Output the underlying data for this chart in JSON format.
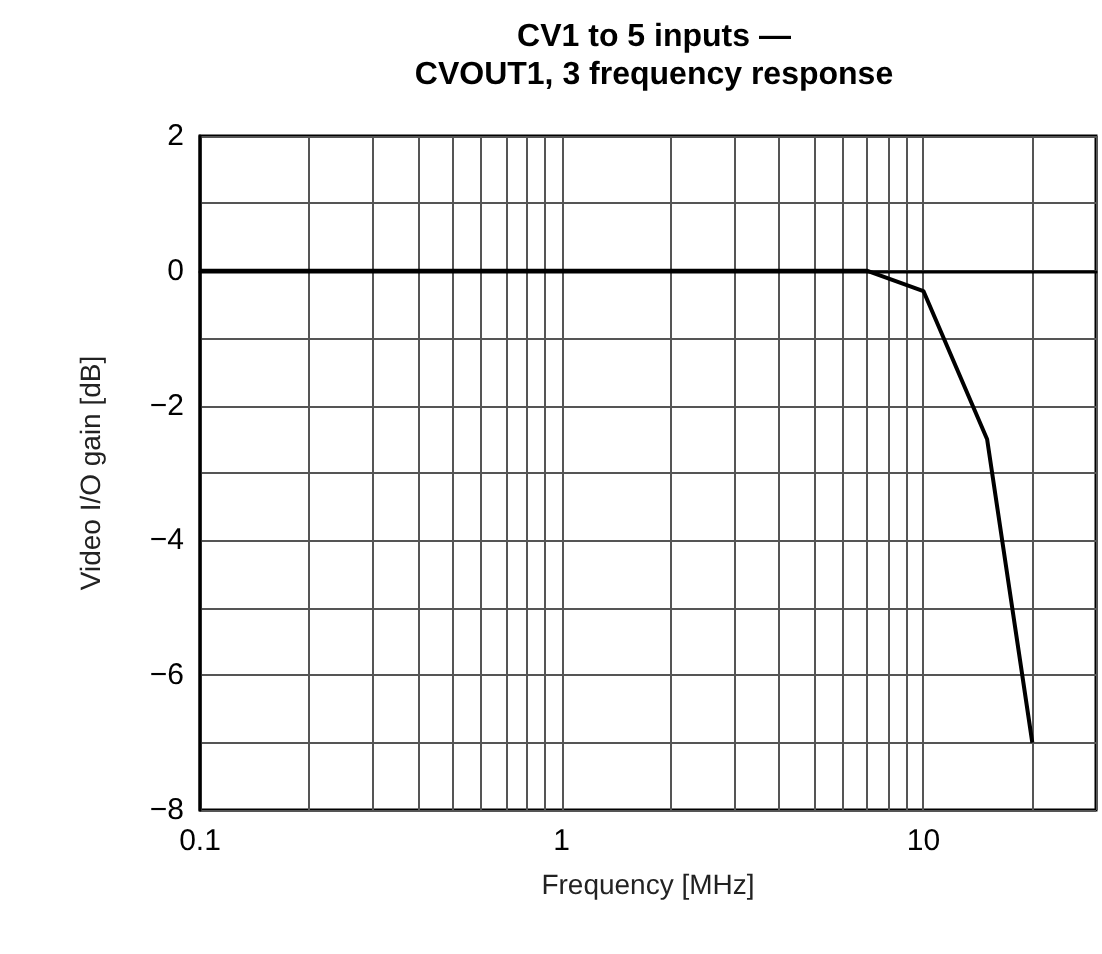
{
  "chart_data": {
    "type": "line",
    "title": "CV1 to 5 inputs —\nCVOUT1, 3 frequency response",
    "xlabel": "Frequency [MHz]",
    "ylabel": "Video I/O gain [dB]",
    "log": "x",
    "grid": true,
    "marker": "none",
    "line_style": "solid",
    "xlim": [
      0.1,
      30
    ],
    "ylim": [
      -8,
      2
    ],
    "xticks": [
      0.1,
      {
        "value": 0.2,
        "label": null
      },
      {
        "value": 0.3,
        "label": null
      },
      {
        "value": 0.4,
        "label": null
      },
      {
        "value": 0.5,
        "label": null
      },
      {
        "value": 0.6,
        "label": null
      },
      {
        "value": 0.7,
        "label": null
      },
      {
        "value": 0.8,
        "label": null
      },
      {
        "value": 0.9,
        "label": null
      },
      1,
      {
        "value": 2,
        "label": null
      },
      {
        "value": 3,
        "label": null
      },
      {
        "value": 4,
        "label": null
      },
      {
        "value": 5,
        "label": null
      },
      {
        "value": 6,
        "label": null
      },
      {
        "value": 7,
        "label": null
      },
      {
        "value": 8,
        "label": null
      },
      {
        "value": 9,
        "label": null
      },
      10,
      {
        "value": 20,
        "label": null
      },
      {
        "value": 30,
        "label": null
      }
    ],
    "yticks": [
      {
        "value": -8,
        "label": "−8"
      },
      {
        "value": -7,
        "label": null
      },
      {
        "value": -6,
        "label": "−6"
      },
      {
        "value": -5,
        "label": null
      },
      {
        "value": -4,
        "label": "−4"
      },
      {
        "value": -3,
        "label": null
      },
      {
        "value": -2,
        "label": "−2"
      },
      {
        "value": -1,
        "label": null
      },
      0,
      {
        "value": 1,
        "label": null
      },
      2
    ],
    "series": [
      {
        "color": "#000000",
        "x": [
          0.1,
          7,
          10,
          15,
          20
        ],
        "values": [
          0,
          0,
          -0.3,
          -2.5,
          -7
        ]
      }
    ]
  }
}
